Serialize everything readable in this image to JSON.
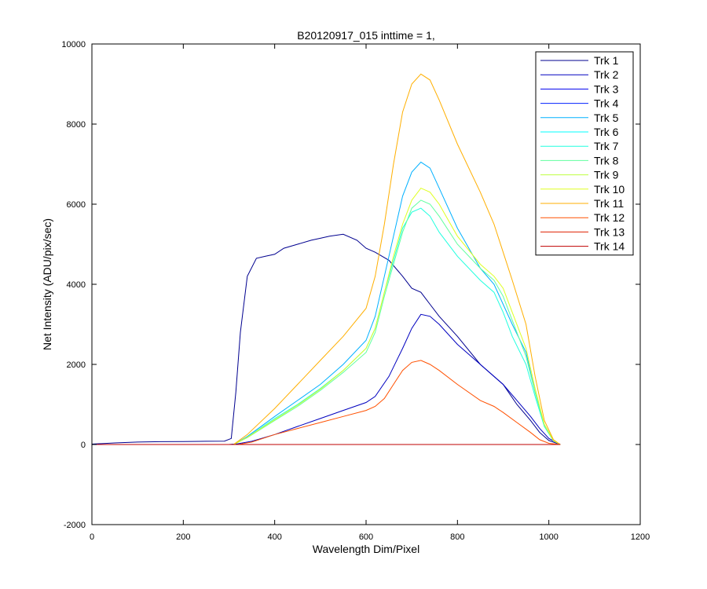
{
  "chart_data": {
    "type": "line",
    "title": "B20120917_015 inttime = 1,",
    "xlabel": "Wavelength Dim/Pixel",
    "ylabel": "Net Intensity (ADU/pix/sec)",
    "xlim": [
      0,
      1200
    ],
    "ylim": [
      -2000,
      10000
    ],
    "xticks": [
      0,
      200,
      400,
      600,
      800,
      1000,
      1200
    ],
    "yticks": [
      -2000,
      0,
      2000,
      4000,
      6000,
      8000,
      10000
    ],
    "grid": false,
    "legend_position": "top-right",
    "series": [
      {
        "name": "Trk 1",
        "color": "#00008F",
        "x": [
          0,
          50,
          100,
          150,
          200,
          250,
          290,
          305,
          315,
          325,
          340,
          360,
          380,
          400,
          420,
          450,
          480,
          500,
          520,
          550,
          580,
          600,
          620,
          650,
          680,
          700,
          720,
          740,
          760,
          800,
          850,
          900,
          930,
          960,
          980,
          1000,
          1020,
          1025
        ],
        "y": [
          10,
          40,
          60,
          70,
          75,
          80,
          85,
          150,
          1300,
          2800,
          4200,
          4650,
          4700,
          4750,
          4900,
          5000,
          5100,
          5150,
          5200,
          5250,
          5100,
          4900,
          4800,
          4600,
          4200,
          3900,
          3800,
          3500,
          3200,
          2700,
          2000,
          1500,
          1000,
          600,
          300,
          100,
          20,
          0
        ]
      },
      {
        "name": "Trk 2",
        "color": "#0000BF",
        "x": [
          0,
          300,
          320,
          350,
          400,
          450,
          500,
          550,
          600,
          620,
          650,
          680,
          700,
          720,
          740,
          760,
          800,
          850,
          900,
          930,
          960,
          980,
          1000,
          1020,
          1025
        ],
        "y": [
          0,
          0,
          20,
          80,
          250,
          450,
          650,
          850,
          1050,
          1200,
          1700,
          2400,
          2900,
          3250,
          3200,
          3000,
          2500,
          2000,
          1500,
          1100,
          700,
          400,
          150,
          30,
          0
        ]
      },
      {
        "name": "Trk 3",
        "color": "#0000EF",
        "x": [
          0,
          1025
        ],
        "y": [
          0,
          0
        ]
      },
      {
        "name": "Trk 4",
        "color": "#0020FF",
        "x": [
          0,
          1025
        ],
        "y": [
          0,
          0
        ]
      },
      {
        "name": "Trk 5",
        "color": "#00B0FF",
        "x": [
          0,
          310,
          340,
          400,
          450,
          500,
          550,
          600,
          620,
          640,
          660,
          680,
          700,
          720,
          740,
          760,
          800,
          850,
          880,
          900,
          920,
          950,
          970,
          990,
          1010,
          1025
        ],
        "y": [
          0,
          0,
          200,
          700,
          1100,
          1500,
          2000,
          2600,
          3200,
          4200,
          5200,
          6200,
          6800,
          7050,
          6900,
          6400,
          5400,
          4400,
          4000,
          3500,
          3000,
          2300,
          1300,
          500,
          100,
          0
        ]
      },
      {
        "name": "Trk 6",
        "color": "#00FFFF",
        "x": [
          0,
          1025
        ],
        "y": [
          0,
          0
        ]
      },
      {
        "name": "Trk 7",
        "color": "#20FFDF",
        "x": [
          0,
          310,
          340,
          400,
          450,
          500,
          550,
          600,
          620,
          640,
          660,
          680,
          700,
          720,
          740,
          760,
          800,
          850,
          880,
          900,
          920,
          950,
          970,
          990,
          1010,
          1025
        ],
        "y": [
          0,
          0,
          180,
          650,
          1000,
          1400,
          1850,
          2400,
          2900,
          3800,
          4600,
          5400,
          5800,
          5900,
          5700,
          5300,
          4700,
          4100,
          3800,
          3300,
          2700,
          2000,
          1200,
          450,
          90,
          0
        ]
      },
      {
        "name": "Trk 8",
        "color": "#60FF9F",
        "x": [
          0,
          310,
          340,
          400,
          450,
          500,
          550,
          600,
          620,
          640,
          660,
          680,
          700,
          720,
          740,
          760,
          800,
          850,
          880,
          900,
          920,
          950,
          970,
          990,
          1010,
          1025
        ],
        "y": [
          0,
          0,
          170,
          600,
          950,
          1350,
          1800,
          2300,
          2800,
          3700,
          4500,
          5300,
          5900,
          6100,
          6000,
          5700,
          5000,
          4400,
          4100,
          3700,
          3100,
          2200,
          1300,
          480,
          95,
          0
        ]
      },
      {
        "name": "Trk 9",
        "color": "#BFFF40",
        "x": [
          0,
          1025
        ],
        "y": [
          0,
          0
        ]
      },
      {
        "name": "Trk 10",
        "color": "#DFFF20",
        "x": [
          0,
          310,
          340,
          400,
          450,
          500,
          550,
          600,
          620,
          640,
          660,
          680,
          700,
          720,
          740,
          760,
          800,
          850,
          880,
          900,
          920,
          950,
          970,
          990,
          1010,
          1025
        ],
        "y": [
          0,
          0,
          180,
          620,
          980,
          1380,
          1850,
          2400,
          2900,
          3800,
          4700,
          5500,
          6100,
          6400,
          6300,
          6000,
          5200,
          4500,
          4200,
          3900,
          3300,
          2400,
          1400,
          500,
          100,
          0
        ]
      },
      {
        "name": "Trk 11",
        "color": "#FFAF00",
        "x": [
          0,
          310,
          340,
          400,
          450,
          500,
          550,
          600,
          620,
          640,
          660,
          680,
          700,
          720,
          740,
          760,
          800,
          850,
          880,
          900,
          920,
          950,
          970,
          990,
          1010,
          1025
        ],
        "y": [
          0,
          0,
          250,
          900,
          1500,
          2100,
          2700,
          3400,
          4200,
          5500,
          7000,
          8300,
          9000,
          9250,
          9100,
          8600,
          7500,
          6300,
          5500,
          4800,
          4100,
          3000,
          1700,
          600,
          120,
          0
        ]
      },
      {
        "name": "Trk 12",
        "color": "#FF5000",
        "x": [
          0,
          320,
          350,
          400,
          450,
          500,
          550,
          600,
          620,
          640,
          660,
          680,
          700,
          720,
          740,
          760,
          800,
          850,
          880,
          900,
          930,
          960,
          980,
          1000,
          1020,
          1025
        ],
        "y": [
          0,
          0,
          60,
          250,
          400,
          550,
          700,
          850,
          950,
          1150,
          1500,
          1850,
          2050,
          2100,
          2000,
          1850,
          1500,
          1100,
          950,
          800,
          550,
          300,
          120,
          30,
          5,
          0
        ]
      },
      {
        "name": "Trk 13",
        "color": "#DF2000",
        "x": [
          0,
          1025
        ],
        "y": [
          0,
          0
        ]
      },
      {
        "name": "Trk 14",
        "color": "#BF0000",
        "x": [
          0,
          1025
        ],
        "y": [
          0,
          0
        ]
      }
    ]
  }
}
